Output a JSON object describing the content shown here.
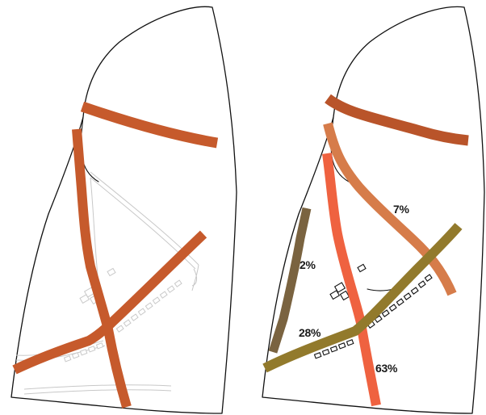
{
  "colors": {
    "left_route": "#c65a2c",
    "top_route": "#b9542a",
    "route_7": "#d67c4a",
    "route_63": "#ef6240",
    "route_28": "#927a2c",
    "route_2": "#7a6340"
  },
  "labels": {
    "pct_7": "7%",
    "pct_2": "2%",
    "pct_28": "28%",
    "pct_63": "63%"
  }
}
